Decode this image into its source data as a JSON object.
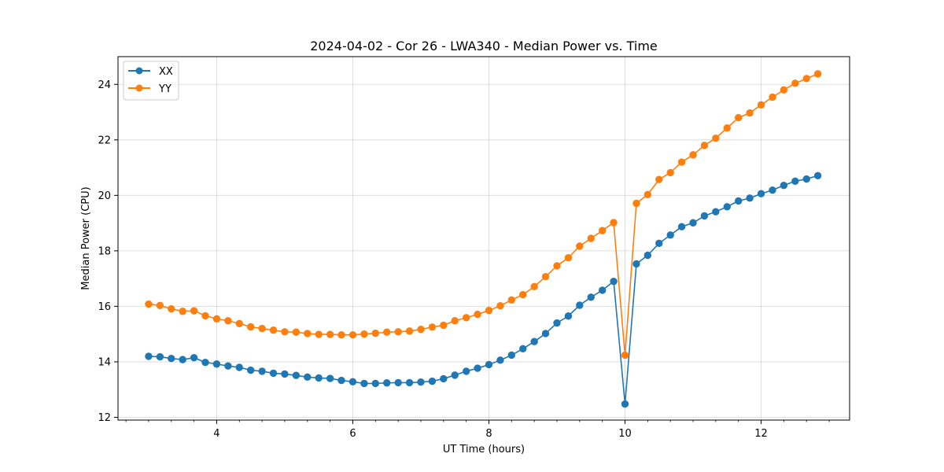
{
  "chart_data": {
    "type": "line",
    "title": "2024-04-02 - Cor 26 - LWA340 - Median Power vs. Time",
    "xlabel": "UT Time (hours)",
    "ylabel": "Median Power (CPU)",
    "xlim": [
      2.55,
      13.3
    ],
    "ylim": [
      11.9,
      25.0
    ],
    "xticks": [
      4,
      6,
      8,
      10,
      12
    ],
    "yticks": [
      12,
      14,
      16,
      18,
      20,
      22,
      24
    ],
    "grid": true,
    "legend": "top-left",
    "x": [
      3.0,
      3.167,
      3.333,
      3.5,
      3.667,
      3.833,
      4.0,
      4.167,
      4.333,
      4.5,
      4.667,
      4.833,
      5.0,
      5.167,
      5.333,
      5.5,
      5.667,
      5.833,
      6.0,
      6.167,
      6.333,
      6.5,
      6.667,
      6.833,
      7.0,
      7.167,
      7.333,
      7.5,
      7.667,
      7.833,
      8.0,
      8.167,
      8.333,
      8.5,
      8.667,
      8.833,
      9.0,
      9.167,
      9.333,
      9.5,
      9.667,
      9.833,
      10.0,
      10.167,
      10.333,
      10.5,
      10.667,
      10.833,
      11.0,
      11.167,
      11.333,
      11.5,
      11.667,
      11.833,
      12.0,
      12.167,
      12.333,
      12.5,
      12.667,
      12.833
    ],
    "series": [
      {
        "name": "XX",
        "color": "#1f77b4",
        "values": [
          14.2,
          14.18,
          14.12,
          14.08,
          14.15,
          13.98,
          13.92,
          13.85,
          13.8,
          13.7,
          13.66,
          13.59,
          13.56,
          13.51,
          13.45,
          13.42,
          13.4,
          13.33,
          13.28,
          13.22,
          13.22,
          13.24,
          13.25,
          13.25,
          13.27,
          13.3,
          13.39,
          13.52,
          13.66,
          13.77,
          13.9,
          14.06,
          14.24,
          14.47,
          14.73,
          15.02,
          15.4,
          15.65,
          16.04,
          16.33,
          16.58,
          16.9,
          12.48,
          17.53,
          17.84,
          18.27,
          18.57,
          18.87,
          19.01,
          19.26,
          19.41,
          19.59,
          19.8,
          19.9,
          20.06,
          20.19,
          20.36,
          20.51,
          20.59,
          20.71
        ]
      },
      {
        "name": "YY",
        "color": "#ff7f0e",
        "values": [
          16.08,
          16.03,
          15.91,
          15.82,
          15.84,
          15.66,
          15.55,
          15.48,
          15.38,
          15.26,
          15.2,
          15.14,
          15.08,
          15.07,
          15.02,
          14.99,
          14.99,
          14.97,
          14.97,
          15.0,
          15.03,
          15.07,
          15.08,
          15.11,
          15.17,
          15.25,
          15.32,
          15.48,
          15.59,
          15.71,
          15.85,
          16.02,
          16.23,
          16.42,
          16.71,
          17.07,
          17.46,
          17.75,
          18.17,
          18.45,
          18.73,
          19.02,
          14.24,
          19.71,
          20.03,
          20.57,
          20.82,
          21.2,
          21.46,
          21.8,
          22.06,
          22.43,
          22.8,
          22.97,
          23.26,
          23.54,
          23.8,
          24.04,
          24.21,
          24.38
        ]
      }
    ]
  }
}
